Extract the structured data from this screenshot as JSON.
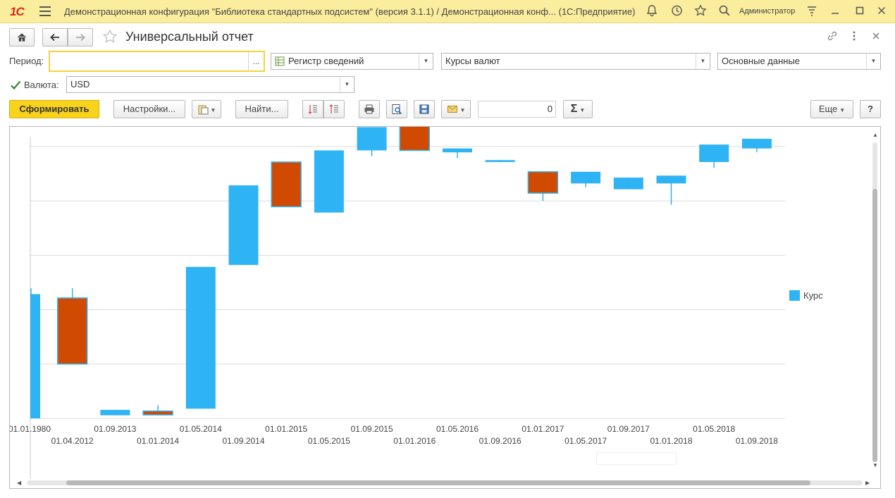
{
  "app": {
    "logo": "1С",
    "title": "Демонстрационная конфигурация \"Библиотека стандартных подсистем\" (версия 3.1.1) / Демонстрационная конф... (1С:Предприятие)",
    "user": "Администратор"
  },
  "form": {
    "title": "Универсальный отчет",
    "period_label": "Период:",
    "period_value": "",
    "period_button": "...",
    "source_type": "Регистр сведений",
    "source_name": "Курсы валют",
    "data_set": "Основные данные",
    "currency_label": "Валюта:",
    "currency_value": "USD",
    "currency_checked": true
  },
  "toolbar": {
    "generate": "Сформировать",
    "settings": "Настройки...",
    "find": "Найти...",
    "sum_value": "0",
    "more": "Еще",
    "help": "?"
  },
  "icons": {
    "home": "home-icon",
    "back": "arrow-left-icon",
    "forward": "arrow-right-icon",
    "favorite": "star-icon",
    "link": "link-icon",
    "menu": "more-vertical-icon",
    "close": "close-icon"
  },
  "colors": {
    "accent": "#f9d21b",
    "rise": "#2eb3f5",
    "fall": "#d04a02",
    "titlebar": "#fbed9e"
  },
  "chart_data": {
    "type": "candlestick",
    "legend": [
      "Курс"
    ],
    "legend_position": "right",
    "grid": true,
    "ylim": [
      0,
      70
    ],
    "x_labels": [
      "01.01.1980",
      "01.04.2012",
      "01.09.2013",
      "01.01.2014",
      "01.05.2014",
      "01.09.2014",
      "01.01.2015",
      "01.05.2015",
      "01.09.2015",
      "01.01.2016",
      "01.05.2016",
      "01.09.2016",
      "01.01.2017",
      "01.05.2017",
      "01.09.2017",
      "01.01.2018",
      "01.05.2018",
      "01.09.2018"
    ],
    "candles": [
      {
        "open": 0,
        "close": 32,
        "high": 33.5,
        "low": 0
      },
      {
        "open": 31,
        "close": 14,
        "high": 33.5,
        "low": 14
      },
      {
        "open": 0.8,
        "close": 2.2,
        "high": 2.2,
        "low": 0.8
      },
      {
        "open": 1.9,
        "close": 0.9,
        "high": 3.4,
        "low": 0.9
      },
      {
        "open": 2.5,
        "close": 39,
        "high": 39,
        "low": 2.5
      },
      {
        "open": 39.5,
        "close": 60,
        "high": 60,
        "low": 39.5
      },
      {
        "open": 66,
        "close": 54.5,
        "high": 66,
        "low": 54.5
      },
      {
        "open": 53,
        "close": 69,
        "high": 69,
        "low": 53
      },
      {
        "open": 69,
        "close": 75,
        "high": 75,
        "low": 67.5
      },
      {
        "open": 82.5,
        "close": 69,
        "high": 82.5,
        "low": 69
      },
      {
        "open": 68.5,
        "close": 69.5,
        "high": 69.5,
        "low": 67
      },
      {
        "open": 66,
        "close": 66.5,
        "high": 66.5,
        "low": 66
      },
      {
        "open": 63.5,
        "close": 58,
        "high": 63.5,
        "low": 56
      },
      {
        "open": 60.5,
        "close": 63.5,
        "high": 63.5,
        "low": 59.5
      },
      {
        "open": 59,
        "close": 62,
        "high": 62,
        "low": 59
      },
      {
        "open": 60.5,
        "close": 62.5,
        "high": 62.5,
        "low": 55
      },
      {
        "open": 66,
        "close": 70.5,
        "high": 70.5,
        "low": 64.5
      },
      {
        "open": 69.5,
        "close": 72,
        "high": 72,
        "low": 68.5
      }
    ]
  }
}
